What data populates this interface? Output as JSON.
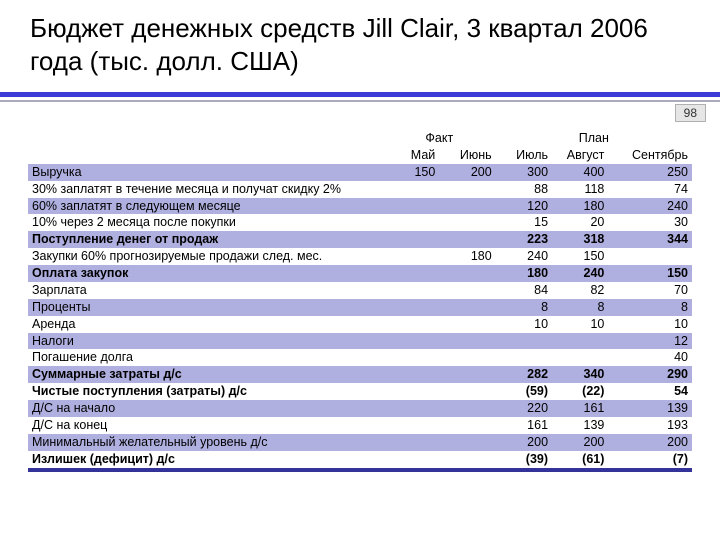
{
  "title": "Бюджет денежных средств Jill Clair, 3 квартал 2006 года (тыс. долл. США)",
  "page_number": "98",
  "colors": {
    "accent": "#3b3bd6",
    "stripe": "#b0b0e0",
    "background": "#ffffff",
    "badge_bg": "#e6e6e6",
    "bottom_rule": "#333399"
  },
  "fonts": {
    "title_size_pt": 26,
    "body_size_pt": 12.5
  },
  "table": {
    "group_headers": {
      "fact": "Факт",
      "plan": "План"
    },
    "columns": [
      "Май",
      "Июнь",
      "Июль",
      "Август",
      "Сентябрь"
    ],
    "rows": [
      {
        "label": "Выручка",
        "bold": false,
        "vals": [
          "150",
          "200",
          "300",
          "400",
          "250"
        ]
      },
      {
        "label": "30% заплатят в течение месяца и получат скидку 2%",
        "bold": false,
        "vals": [
          "",
          "",
          "88",
          "118",
          "74"
        ]
      },
      {
        "label": "60% заплатят в следующем месяце",
        "bold": false,
        "vals": [
          "",
          "",
          "120",
          "180",
          "240"
        ]
      },
      {
        "label": "10% через 2 месяца после покупки",
        "bold": false,
        "vals": [
          "",
          "",
          "15",
          "20",
          "30"
        ]
      },
      {
        "label": "Поступление денег от продаж",
        "bold": true,
        "vals": [
          "",
          "",
          "223",
          "318",
          "344"
        ]
      },
      {
        "label": "Закупки 60% прогнозируемые продажи след. мес.",
        "bold": false,
        "vals": [
          "",
          "180",
          "240",
          "150",
          ""
        ]
      },
      {
        "label": "Оплата закупок",
        "bold": true,
        "vals": [
          "",
          "",
          "180",
          "240",
          "150"
        ]
      },
      {
        "label": "Зарплата",
        "bold": false,
        "vals": [
          "",
          "",
          "84",
          "82",
          "70"
        ]
      },
      {
        "label": "Проценты",
        "bold": false,
        "vals": [
          "",
          "",
          "8",
          "8",
          "8"
        ]
      },
      {
        "label": "Аренда",
        "bold": false,
        "vals": [
          "",
          "",
          "10",
          "10",
          "10"
        ]
      },
      {
        "label": "Налоги",
        "bold": false,
        "vals": [
          "",
          "",
          "",
          "",
          "12"
        ]
      },
      {
        "label": "Погашение долга",
        "bold": false,
        "vals": [
          "",
          "",
          "",
          "",
          "40"
        ]
      },
      {
        "label": "Суммарные затраты д/с",
        "bold": true,
        "vals": [
          "",
          "",
          "282",
          "340",
          "290"
        ]
      },
      {
        "label": "Чистые поступления (затраты) д/с",
        "bold": true,
        "vals": [
          "",
          "",
          "(59)",
          "(22)",
          "54"
        ]
      },
      {
        "label": "Д/С на начало",
        "bold": false,
        "vals": [
          "",
          "",
          "220",
          "161",
          "139"
        ]
      },
      {
        "label": "Д/С на конец",
        "bold": false,
        "vals": [
          "",
          "",
          "161",
          "139",
          "193"
        ]
      },
      {
        "label": "Минимальный желательный уровень д/с",
        "bold": false,
        "vals": [
          "",
          "",
          "200",
          "200",
          "200"
        ]
      },
      {
        "label": "Излишек (дефицит) д/с",
        "bold": true,
        "vals": [
          "",
          "",
          "(39)",
          "(61)",
          "(7)"
        ]
      }
    ]
  }
}
